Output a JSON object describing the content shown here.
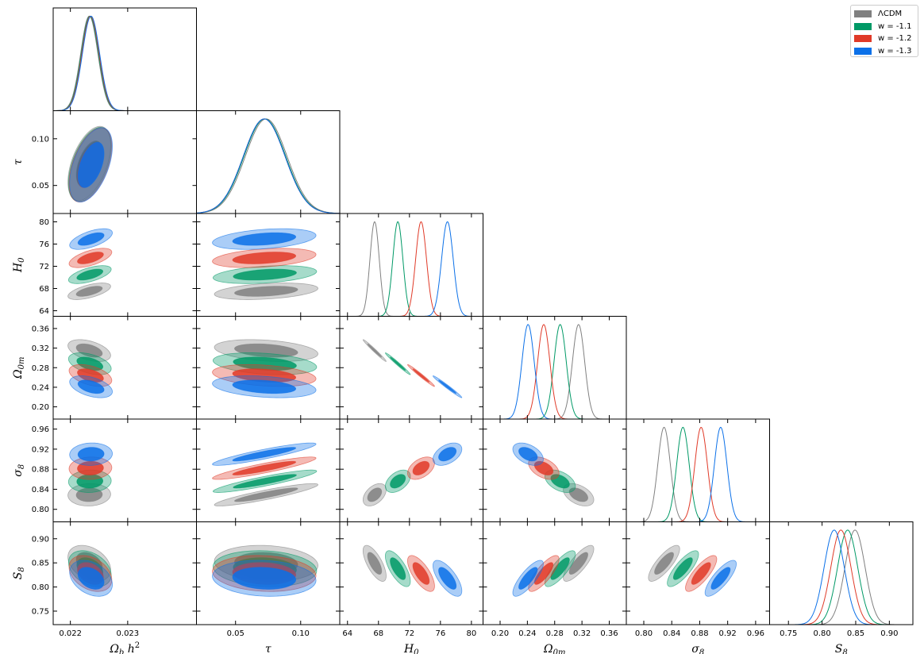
{
  "chart_data": {
    "type": "corner_plot",
    "parameters": [
      {
        "label": "Ω_b h^2",
        "range": [
          0.0217,
          0.0242
        ],
        "ticks": [
          "0.022",
          "0.023"
        ],
        "tick_values": [
          0.022,
          0.023
        ]
      },
      {
        "label": "τ",
        "range": [
          0.02,
          0.13
        ],
        "ticks": [
          "0.05",
          "0.10"
        ],
        "tick_values": [
          0.05,
          0.1
        ]
      },
      {
        "label": "H_0",
        "range": [
          63,
          81.5
        ],
        "ticks": [
          "64",
          "68",
          "72",
          "76",
          "80"
        ],
        "tick_values": [
          64,
          68,
          72,
          76,
          80
        ]
      },
      {
        "label": "Ω_0m",
        "range": [
          0.175,
          0.385
        ],
        "ticks": [
          "0.20",
          "0.24",
          "0.28",
          "0.32",
          "0.36"
        ],
        "tick_values": [
          0.2,
          0.24,
          0.28,
          0.32,
          0.36
        ]
      },
      {
        "label": "σ_8",
        "range": [
          0.775,
          0.98
        ],
        "ticks": [
          "0.80",
          "0.84",
          "0.88",
          "0.92",
          "0.96"
        ],
        "tick_values": [
          0.8,
          0.84,
          0.88,
          0.92,
          0.96
        ]
      },
      {
        "label": "S_8",
        "range": [
          0.722,
          0.935
        ],
        "ticks": [
          "0.75",
          "0.80",
          "0.85",
          "0.90"
        ],
        "tick_values": [
          0.75,
          0.8,
          0.85,
          0.9
        ]
      }
    ],
    "series": [
      {
        "name": "ΛCDM",
        "color": "#808080",
        "mean": [
          0.02233,
          0.0735,
          67.5,
          0.315,
          0.829,
          0.849
        ],
        "sigma": [
          0.00015,
          0.016,
          0.6,
          0.009,
          0.009,
          0.015
        ]
      },
      {
        "name": "w = -1.1",
        "color": "#009966",
        "mean": [
          0.02234,
          0.0725,
          70.5,
          0.288,
          0.856,
          0.838
        ],
        "sigma": [
          0.00015,
          0.016,
          0.65,
          0.009,
          0.009,
          0.015
        ]
      },
      {
        "name": "w = -1.2",
        "color": "#e03a28",
        "mean": [
          0.02235,
          0.072,
          73.5,
          0.264,
          0.882,
          0.828
        ],
        "sigma": [
          0.00015,
          0.016,
          0.7,
          0.009,
          0.009,
          0.015
        ]
      },
      {
        "name": "w = -1.3",
        "color": "#0b70e8",
        "mean": [
          0.02236,
          0.072,
          76.9,
          0.241,
          0.91,
          0.818
        ],
        "sigma": [
          0.00015,
          0.016,
          0.75,
          0.009,
          0.009,
          0.015
        ]
      }
    ],
    "correlations": {
      "0-1": 0.5,
      "0-2": 0.6,
      "0-3": -0.45,
      "0-4": 0.05,
      "0-5": -0.35,
      "1-2": 0.35,
      "1-3": -0.3,
      "1-4": 0.9,
      "1-5": -0.12,
      "2-3": -0.985,
      "2-4": 0.45,
      "2-5": -0.7,
      "3-4": -0.45,
      "3-5": 0.8,
      "4-5": 0.8
    },
    "contour_levels": [
      "68%",
      "95%"
    ],
    "legend_position": "top-right",
    "grid": false
  }
}
